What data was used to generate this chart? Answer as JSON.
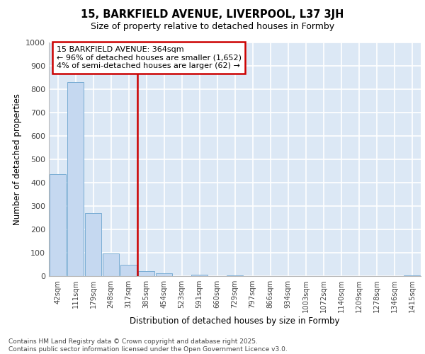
{
  "title_line1": "15, BARKFIELD AVENUE, LIVERPOOL, L37 3JH",
  "title_line2": "Size of property relative to detached houses in Formby",
  "xlabel": "Distribution of detached houses by size in Formby",
  "ylabel": "Number of detached properties",
  "categories": [
    "42sqm",
    "111sqm",
    "179sqm",
    "248sqm",
    "317sqm",
    "385sqm",
    "454sqm",
    "523sqm",
    "591sqm",
    "660sqm",
    "729sqm",
    "797sqm",
    "866sqm",
    "934sqm",
    "1003sqm",
    "1072sqm",
    "1140sqm",
    "1209sqm",
    "1278sqm",
    "1346sqm",
    "1415sqm"
  ],
  "values": [
    435,
    830,
    270,
    97,
    48,
    20,
    12,
    0,
    5,
    0,
    3,
    0,
    0,
    0,
    0,
    0,
    0,
    0,
    0,
    0,
    3
  ],
  "bar_color": "#c5d8f0",
  "bar_edge_color": "#7aadd4",
  "vline_position": 4.5,
  "vline_color": "#cc0000",
  "annotation_text": "15 BARKFIELD AVENUE: 364sqm\n← 96% of detached houses are smaller (1,652)\n4% of semi-detached houses are larger (62) →",
  "annotation_box_color": "#cc0000",
  "ylim": [
    0,
    1000
  ],
  "yticks": [
    0,
    100,
    200,
    300,
    400,
    500,
    600,
    700,
    800,
    900,
    1000
  ],
  "footnote": "Contains HM Land Registry data © Crown copyright and database right 2025.\nContains public sector information licensed under the Open Government Licence v3.0.",
  "background_color": "#ffffff",
  "plot_bg_color": "#dce8f5"
}
